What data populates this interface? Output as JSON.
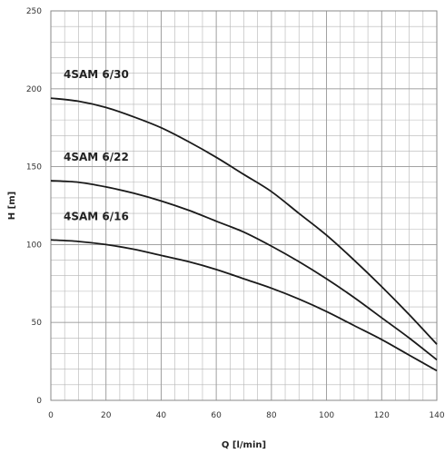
{
  "chart_data": {
    "type": "line",
    "title": "",
    "xlabel": "Q [l/min]",
    "ylabel": "H [m]",
    "xlim": [
      0,
      140
    ],
    "ylim": [
      0,
      250
    ],
    "x_ticks": [
      0,
      20,
      40,
      60,
      80,
      100,
      120,
      140
    ],
    "y_ticks": [
      0,
      50,
      100,
      150,
      200,
      250
    ],
    "grid": true,
    "legend": "none",
    "line_color": "#1a1a1a",
    "grid_color": "#b5b5b5",
    "series": [
      {
        "name": "4SAM 6/30",
        "x": [
          0,
          10,
          20,
          30,
          40,
          50,
          60,
          70,
          80,
          90,
          100,
          110,
          120,
          130,
          140
        ],
        "y": [
          194,
          192,
          188,
          182,
          175,
          166,
          156,
          145,
          134,
          120,
          106,
          90,
          73,
          55,
          36
        ]
      },
      {
        "name": "4SAM 6/22",
        "x": [
          0,
          10,
          20,
          30,
          40,
          50,
          60,
          70,
          80,
          90,
          100,
          110,
          120,
          130,
          140
        ],
        "y": [
          141,
          140,
          137,
          133,
          128,
          122,
          115,
          108,
          99,
          89,
          78,
          66,
          53,
          40,
          26
        ]
      },
      {
        "name": "4SAM 6/16",
        "x": [
          0,
          10,
          20,
          30,
          40,
          50,
          60,
          70,
          80,
          90,
          100,
          110,
          120,
          130,
          140
        ],
        "y": [
          103,
          102,
          100,
          97,
          93,
          89,
          84,
          78,
          72,
          65,
          57,
          48,
          39,
          29,
          19
        ]
      }
    ],
    "labels": [
      {
        "text": "4SAM 6/30",
        "series": 0
      },
      {
        "text": "4SAM 6/22",
        "series": 1
      },
      {
        "text": "4SAM 6/16",
        "series": 2
      }
    ]
  }
}
